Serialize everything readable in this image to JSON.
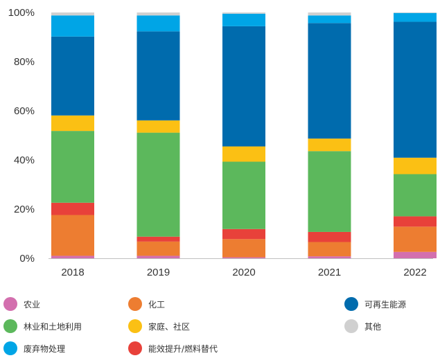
{
  "chart_data": {
    "type": "bar",
    "stacked": true,
    "percent": true,
    "categories": [
      "2018",
      "2019",
      "2020",
      "2021",
      "2022"
    ],
    "ylim": [
      0,
      100
    ],
    "yticks": [
      "0%",
      "20%",
      "40%",
      "60%",
      "80%",
      "100%"
    ],
    "xlabel": "",
    "ylabel": "",
    "title": "",
    "series": [
      {
        "name": "农业",
        "color": "#d36fae",
        "values": [
          1.0,
          1.0,
          0.4,
          0.8,
          2.6
        ]
      },
      {
        "name": "化工",
        "color": "#ed7d31",
        "values": [
          16.6,
          5.8,
          7.4,
          5.8,
          10.3
        ]
      },
      {
        "name": "能效提升/燃料替代",
        "color": "#e8413a",
        "values": [
          5.0,
          2.0,
          4.1,
          4.1,
          4.2
        ]
      },
      {
        "name": "林业和土地利用",
        "color": "#5cb85c",
        "values": [
          29.2,
          42.3,
          27.4,
          32.8,
          17.2
        ]
      },
      {
        "name": "家庭、社区",
        "color": "#fbc014",
        "values": [
          6.3,
          5.0,
          6.2,
          5.1,
          6.7
        ]
      },
      {
        "name": "可再生能源",
        "color": "#006bad",
        "values": [
          32.1,
          36.2,
          48.9,
          46.9,
          55.4
        ]
      },
      {
        "name": "废弃物处理",
        "color": "#00a5e6",
        "values": [
          8.6,
          6.5,
          5.1,
          3.1,
          3.6
        ]
      },
      {
        "name": "其他",
        "color": "#d0d0d0",
        "values": [
          1.2,
          1.2,
          0.5,
          1.2,
          0.2
        ]
      }
    ]
  },
  "legend": [
    {
      "label": "农业",
      "color": "#d36fae"
    },
    {
      "label": "化工",
      "color": "#ed7d31"
    },
    {
      "label": "可再生能源",
      "color": "#006bad"
    },
    {
      "label": "林业和土地利用",
      "color": "#5cb85c"
    },
    {
      "label": "家庭、社区",
      "color": "#fbc014"
    },
    {
      "label": "其他",
      "color": "#d0d0d0"
    },
    {
      "label": "废弃物处理",
      "color": "#00a5e6"
    },
    {
      "label": "能效提升/燃料替代",
      "color": "#e8413a"
    }
  ]
}
